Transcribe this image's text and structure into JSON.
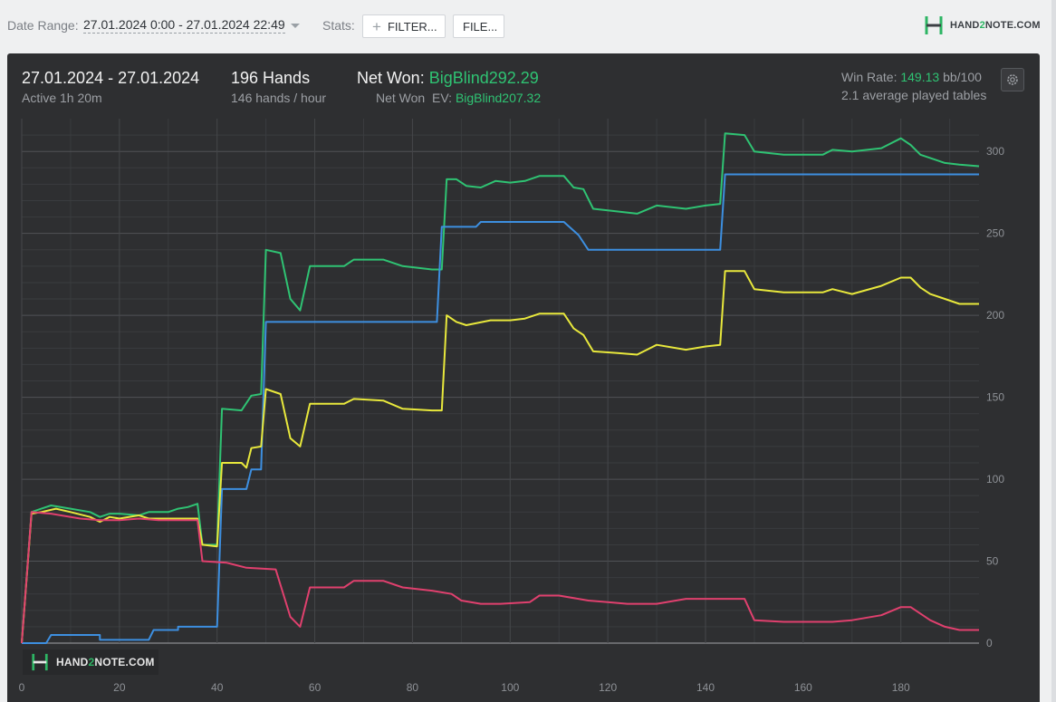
{
  "toolbar": {
    "date_range_label": "Date Range:",
    "date_range_value": "27.01.2024 0:00 - 27.01.2024 22:49",
    "stats_label": "Stats:",
    "filter_button": "FILTER...",
    "file_button": "FILE..."
  },
  "brand": {
    "prefix": "HAND",
    "two": "2",
    "suffix": "NOTE.COM"
  },
  "summary": {
    "date": "27.01.2024 - 27.01.2024",
    "active": "Active 1h 20m",
    "hands": "196 Hands",
    "hands_per_hour": "146 hands / hour",
    "net_won_label": "Net Won:",
    "net_won_value": "BigBlind292.29",
    "net_won_ev_label": "Net Won  EV:",
    "net_won_ev_value": "BigBlind207.32",
    "win_rate_label": "Win Rate:",
    "win_rate_value": "149.13",
    "win_rate_unit": "bb/100",
    "avg_tables": "2.1 average played tables"
  },
  "colors": {
    "background": "#2e2f31",
    "net_won": "#2fc373",
    "showdown": "#3d8fe0",
    "ev": "#e8e83c",
    "non_showdown": "#e0406e",
    "grid": "#45474a"
  },
  "chart_data": {
    "type": "line",
    "xlim": [
      0,
      196
    ],
    "ylim": [
      0,
      320
    ],
    "x_ticks": [
      "0",
      "20",
      "40",
      "60",
      "80",
      "100",
      "120",
      "140",
      "160",
      "180"
    ],
    "y_ticks": [
      "0",
      "50",
      "100",
      "150",
      "200",
      "250",
      "300"
    ],
    "grid": true,
    "series": [
      {
        "color": "#2fc373",
        "points": [
          [
            0,
            0
          ],
          [
            2,
            80
          ],
          [
            4,
            82
          ],
          [
            6,
            84
          ],
          [
            10,
            82
          ],
          [
            14,
            80
          ],
          [
            16,
            77
          ],
          [
            18,
            79
          ],
          [
            20,
            79
          ],
          [
            24,
            78
          ],
          [
            26,
            80
          ],
          [
            28,
            80
          ],
          [
            30,
            80
          ],
          [
            32,
            82
          ],
          [
            34,
            83
          ],
          [
            36,
            85
          ],
          [
            37,
            60
          ],
          [
            40,
            60
          ],
          [
            41,
            143
          ],
          [
            45,
            142
          ],
          [
            47,
            151
          ],
          [
            49,
            152
          ],
          [
            50,
            240
          ],
          [
            53,
            238
          ],
          [
            55,
            210
          ],
          [
            57,
            203
          ],
          [
            59,
            230
          ],
          [
            66,
            230
          ],
          [
            68,
            234
          ],
          [
            74,
            234
          ],
          [
            78,
            230
          ],
          [
            84,
            228
          ],
          [
            86,
            228
          ],
          [
            87,
            283
          ],
          [
            89,
            283
          ],
          [
            91,
            279
          ],
          [
            94,
            278
          ],
          [
            97,
            282
          ],
          [
            100,
            281
          ],
          [
            103,
            282
          ],
          [
            106,
            285
          ],
          [
            111,
            285
          ],
          [
            113,
            278
          ],
          [
            115,
            277
          ],
          [
            117,
            265
          ],
          [
            120,
            264
          ],
          [
            126,
            262
          ],
          [
            130,
            267
          ],
          [
            136,
            265
          ],
          [
            140,
            267
          ],
          [
            143,
            268
          ],
          [
            144,
            311
          ],
          [
            148,
            310
          ],
          [
            150,
            300
          ],
          [
            156,
            298
          ],
          [
            164,
            298
          ],
          [
            166,
            301
          ],
          [
            170,
            300
          ],
          [
            176,
            302
          ],
          [
            180,
            308
          ],
          [
            182,
            304
          ],
          [
            184,
            298
          ],
          [
            186,
            296
          ],
          [
            189,
            293
          ],
          [
            192,
            292
          ],
          [
            196,
            291
          ]
        ]
      },
      {
        "color": "#3d8fe0",
        "points": [
          [
            0,
            0
          ],
          [
            5,
            0
          ],
          [
            6,
            5
          ],
          [
            16,
            5
          ],
          [
            16,
            2
          ],
          [
            26,
            2
          ],
          [
            27,
            8
          ],
          [
            32,
            8
          ],
          [
            32,
            10
          ],
          [
            40,
            10
          ],
          [
            41,
            94
          ],
          [
            46,
            94
          ],
          [
            47,
            106
          ],
          [
            49,
            106
          ],
          [
            50,
            196
          ],
          [
            85,
            196
          ],
          [
            86,
            254
          ],
          [
            93,
            254
          ],
          [
            94,
            257
          ],
          [
            111,
            257
          ],
          [
            114,
            249
          ],
          [
            116,
            240
          ],
          [
            143,
            240
          ],
          [
            144,
            286
          ],
          [
            196,
            286
          ]
        ]
      },
      {
        "color": "#e8e83c",
        "points": [
          [
            0,
            0
          ],
          [
            2,
            79
          ],
          [
            4,
            80
          ],
          [
            7,
            82
          ],
          [
            10,
            80
          ],
          [
            14,
            77
          ],
          [
            16,
            74
          ],
          [
            18,
            77
          ],
          [
            20,
            76
          ],
          [
            24,
            78
          ],
          [
            26,
            76
          ],
          [
            28,
            76
          ],
          [
            32,
            76
          ],
          [
            36,
            76
          ],
          [
            37,
            60
          ],
          [
            40,
            59
          ],
          [
            41,
            110
          ],
          [
            45,
            110
          ],
          [
            46,
            107
          ],
          [
            47,
            119
          ],
          [
            49,
            120
          ],
          [
            50,
            155
          ],
          [
            53,
            152
          ],
          [
            55,
            125
          ],
          [
            57,
            120
          ],
          [
            59,
            146
          ],
          [
            66,
            146
          ],
          [
            68,
            149
          ],
          [
            74,
            148
          ],
          [
            78,
            143
          ],
          [
            84,
            142
          ],
          [
            86,
            142
          ],
          [
            87,
            200
          ],
          [
            89,
            196
          ],
          [
            91,
            194
          ],
          [
            96,
            197
          ],
          [
            100,
            197
          ],
          [
            103,
            198
          ],
          [
            106,
            201
          ],
          [
            111,
            201
          ],
          [
            113,
            192
          ],
          [
            115,
            188
          ],
          [
            117,
            178
          ],
          [
            122,
            177
          ],
          [
            126,
            176
          ],
          [
            130,
            182
          ],
          [
            136,
            179
          ],
          [
            140,
            181
          ],
          [
            143,
            182
          ],
          [
            144,
            227
          ],
          [
            148,
            227
          ],
          [
            150,
            216
          ],
          [
            156,
            214
          ],
          [
            164,
            214
          ],
          [
            166,
            216
          ],
          [
            170,
            213
          ],
          [
            176,
            218
          ],
          [
            180,
            223
          ],
          [
            182,
            223
          ],
          [
            184,
            217
          ],
          [
            186,
            213
          ],
          [
            189,
            210
          ],
          [
            192,
            207
          ],
          [
            196,
            207
          ]
        ]
      },
      {
        "color": "#e0406e",
        "points": [
          [
            0,
            0
          ],
          [
            2,
            80
          ],
          [
            6,
            79
          ],
          [
            12,
            76
          ],
          [
            16,
            75
          ],
          [
            20,
            75
          ],
          [
            24,
            76
          ],
          [
            28,
            75
          ],
          [
            32,
            75
          ],
          [
            36,
            75
          ],
          [
            37,
            50
          ],
          [
            42,
            49
          ],
          [
            46,
            46
          ],
          [
            52,
            45
          ],
          [
            55,
            16
          ],
          [
            57,
            10
          ],
          [
            59,
            34
          ],
          [
            66,
            34
          ],
          [
            68,
            38
          ],
          [
            74,
            38
          ],
          [
            78,
            34
          ],
          [
            84,
            32
          ],
          [
            88,
            30
          ],
          [
            90,
            26
          ],
          [
            94,
            24
          ],
          [
            98,
            24
          ],
          [
            104,
            25
          ],
          [
            106,
            29
          ],
          [
            110,
            29
          ],
          [
            116,
            26
          ],
          [
            120,
            25
          ],
          [
            124,
            24
          ],
          [
            130,
            24
          ],
          [
            136,
            27
          ],
          [
            140,
            27
          ],
          [
            144,
            27
          ],
          [
            148,
            27
          ],
          [
            150,
            14
          ],
          [
            156,
            13
          ],
          [
            162,
            13
          ],
          [
            166,
            13
          ],
          [
            170,
            14
          ],
          [
            176,
            17
          ],
          [
            180,
            22
          ],
          [
            182,
            22
          ],
          [
            184,
            18
          ],
          [
            186,
            14
          ],
          [
            189,
            10
          ],
          [
            192,
            8
          ],
          [
            196,
            8
          ]
        ]
      }
    ]
  }
}
